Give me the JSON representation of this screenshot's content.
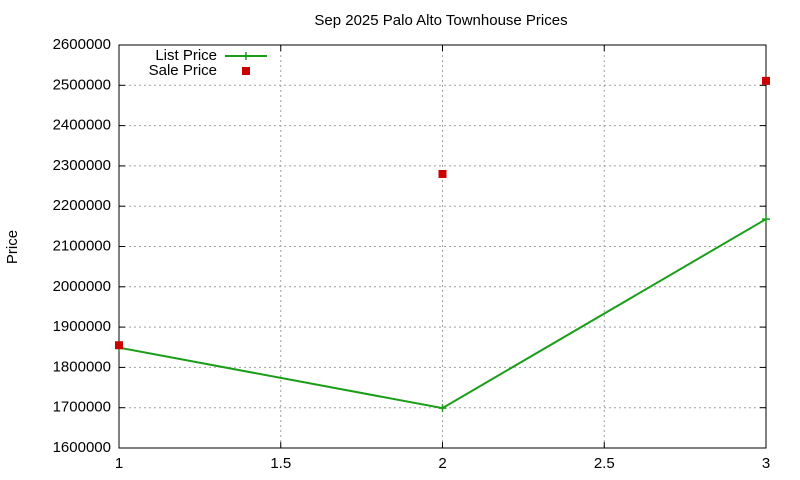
{
  "chart_data": {
    "type": "line",
    "title": "Sep 2025 Palo Alto Townhouse Prices",
    "y_label": "Price",
    "x": [
      1,
      2,
      3
    ],
    "series": [
      {
        "name": "List Price",
        "color": "#1a9e1a",
        "style": "linespoints",
        "values": [
          1849000,
          1699000,
          2168000
        ]
      },
      {
        "name": "Sale Price",
        "color": "#cc0000",
        "style": "points",
        "values": [
          1855000,
          2280000,
          2511000
        ]
      }
    ],
    "xlim": [
      1,
      3
    ],
    "xticks": [
      1,
      1.5,
      2,
      2.5,
      3
    ],
    "ylim": [
      1600000,
      2600000
    ],
    "yticks": [
      1600000,
      1700000,
      1800000,
      1900000,
      2000000,
      2100000,
      2200000,
      2300000,
      2400000,
      2500000,
      2600000
    ],
    "grid": true,
    "legend": "top-left"
  }
}
